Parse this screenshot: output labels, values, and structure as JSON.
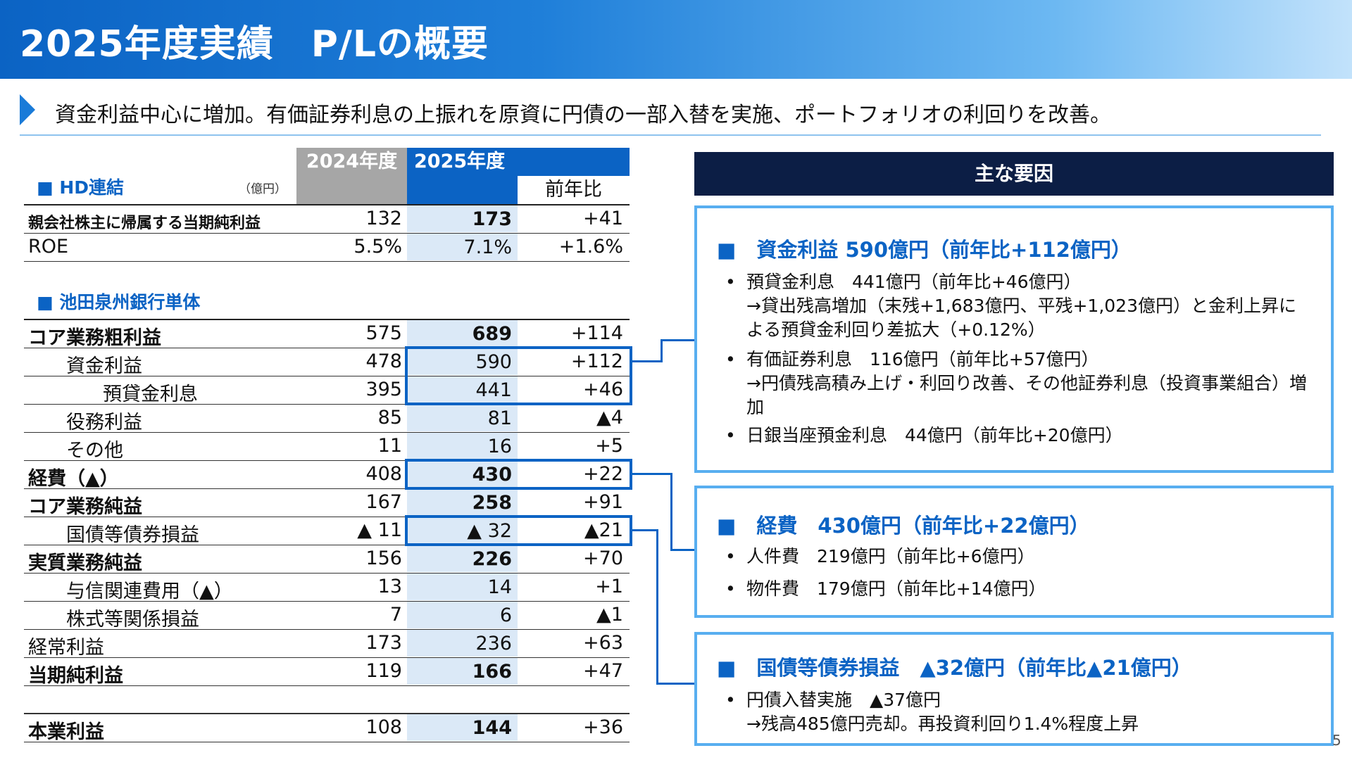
{
  "header": {
    "title": "2025年度実績　P/Lの概要"
  },
  "subtitle": "資金利益中心に増加。有価証券利息の上振れを原資に円債の一部入替を実施、ポートフォリオの利回りを改善。",
  "table": {
    "col_2024": "2024年度",
    "col_2025": "2025年度",
    "col_yoy": "前年比",
    "hd_title": "■ HD連結",
    "unit": "（億円）",
    "ikeda_title": "■ 池田泉州銀行単体",
    "hd_rows": [
      {
        "label": "親会社株主に帰属する当期純利益",
        "v2024": "132",
        "v2025": "173",
        "yoy": "+41"
      },
      {
        "label": "ROE",
        "v2024": "5.5%",
        "v2025": "7.1%",
        "yoy": "+1.6%"
      }
    ],
    "bank_rows": [
      {
        "label": "コア業務粗利益",
        "v2024": "575",
        "v2025": "689",
        "yoy": "+114"
      },
      {
        "label": "資金利益",
        "v2024": "478",
        "v2025": "590",
        "yoy": "+112"
      },
      {
        "label": "預貸金利息",
        "v2024": "395",
        "v2025": "441",
        "yoy": "+46"
      },
      {
        "label": "役務利益",
        "v2024": "85",
        "v2025": "81",
        "yoy": "▲4"
      },
      {
        "label": "その他",
        "v2024": "11",
        "v2025": "16",
        "yoy": "+5"
      },
      {
        "label": "経費（▲）",
        "v2024": "408",
        "v2025": "430",
        "yoy": "+22"
      },
      {
        "label": "コア業務純益",
        "v2024": "167",
        "v2025": "258",
        "yoy": "+91"
      },
      {
        "label": "国債等債券損益",
        "v2024": "▲ 11",
        "v2025": "▲ 32",
        "yoy": "▲21"
      },
      {
        "label": "実質業務純益",
        "v2024": "156",
        "v2025": "226",
        "yoy": "+70"
      },
      {
        "label": "与信関連費用（▲）",
        "v2024": "13",
        "v2025": "14",
        "yoy": "+1"
      },
      {
        "label": "株式等関係損益",
        "v2024": "7",
        "v2025": "6",
        "yoy": "▲1"
      },
      {
        "label": "経常利益",
        "v2024": "173",
        "v2025": "236",
        "yoy": "+63"
      },
      {
        "label": "当期純利益",
        "v2024": "119",
        "v2025": "166",
        "yoy": "+47"
      }
    ],
    "core_row": {
      "label": "本業利益",
      "v2024": "108",
      "v2025": "144",
      "yoy": "+36"
    }
  },
  "factors": {
    "heading": "主な要因",
    "boxes": [
      {
        "title": "■　資金利益 590億円（前年比+112億円）",
        "bullets": [
          "預貸金利息　441億円（前年比+46億円）\n→貸出残高増加（末残+1,683億円、平残+1,023億円）と金利上昇による預貸金利回り差拡大（+0.12%）",
          "有価証券利息　116億円（前年比+57億円）\n→円債残高積み上げ・利回り改善、その他証券利息（投資事業組合）増加",
          "日銀当座預金利息　44億円（前年比+20億円）"
        ]
      },
      {
        "title": "■　経費　430億円（前年比+22億円）",
        "bullets": [
          "人件費　219億円（前年比+6億円）",
          "物件費　179億円（前年比+14億円）"
        ]
      },
      {
        "title": "■　国債等債券損益　▲32億円（前年比▲21億円）",
        "bullets": [
          "円債入替実施　▲37億円\n→残高485億円売却。再投資利回り1.4%程度上昇"
        ]
      }
    ]
  },
  "page_number": "5",
  "colors": {
    "header_blue": "#0b63c4",
    "navy": "#0c1e45",
    "light_blue": "#58aef0",
    "cell_fill": "#dbe9f7",
    "gray": "#a6a6a6"
  }
}
